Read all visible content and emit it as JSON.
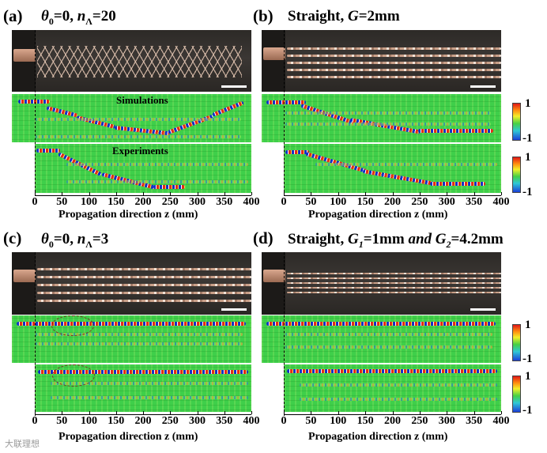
{
  "panels": {
    "a": {
      "label": "(a)",
      "title_parts": [
        "θ",
        "0",
        "=0, ",
        "n",
        "Λ",
        "=20"
      ],
      "sim_label": "Simulations",
      "exp_label": "Experiments"
    },
    "b": {
      "label": "(b)",
      "title_prefix": "Straight, ",
      "title_var": "G",
      "title_suffix": "=2mm"
    },
    "c": {
      "label": "(c)",
      "title_parts": [
        "θ",
        "0",
        "=0, ",
        "n",
        "Λ",
        "=3"
      ]
    },
    "d": {
      "label": "(d)",
      "title_prefix": "Straight, ",
      "title_var1": "G",
      "title_sub1": "1",
      "title_mid": "=1mm ",
      "title_and": "and ",
      "title_var2": "G",
      "title_sub2": "2",
      "title_suffix": "=4.2mm"
    }
  },
  "axis": {
    "xlabel": "Propagation direction z (mm)",
    "ticks": [
      "0",
      "50",
      "100",
      "150",
      "200",
      "250",
      "300",
      "350",
      "400"
    ]
  },
  "colorbar": {
    "max": "1",
    "min": "-1"
  },
  "watermark": "大联理想",
  "colors": {
    "field_green": "#3fcf4a",
    "beam_red": "#e42a18",
    "beam_blue": "#1330c8",
    "copper": "#d9a78e"
  }
}
